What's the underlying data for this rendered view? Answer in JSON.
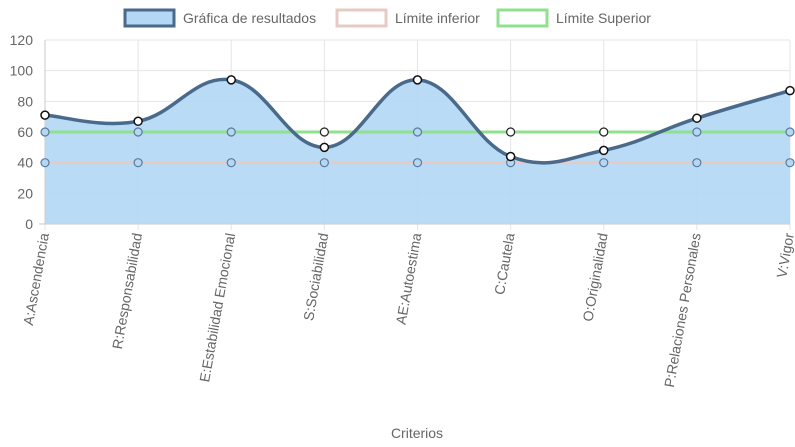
{
  "chart_data": {
    "type": "line",
    "categories": [
      "A:Ascendencia",
      "R:Responsabilidad",
      "E:Estabilidad Emocional",
      "S:Sociabilidad",
      "AE:Autoestima",
      "C:Cautela",
      "O:Originalidad",
      "P:Relaciones Personales",
      "V:Vigor"
    ],
    "series": [
      {
        "name": "Gráfica de resultados",
        "values": [
          71,
          67,
          94,
          50,
          94,
          44,
          48,
          69,
          87
        ],
        "line_color": "#4a6a8c",
        "fill_color": "#b3d7f5",
        "fill": true
      },
      {
        "name": "Límite inferior",
        "values": [
          40,
          40,
          40,
          40,
          40,
          40,
          40,
          40,
          40
        ],
        "line_color": "#e5cbc4",
        "fill": false
      },
      {
        "name": "Límite Superior",
        "values": [
          60,
          60,
          60,
          60,
          60,
          60,
          60,
          60,
          60
        ],
        "line_color": "#8fe08f",
        "fill": false
      }
    ],
    "xlabel": "Criterios",
    "ylabel": "",
    "ylim": [
      0,
      120
    ],
    "yticks": [
      0,
      20,
      40,
      60,
      80,
      100,
      120
    ],
    "grid": true,
    "legend_position": "top-center"
  }
}
